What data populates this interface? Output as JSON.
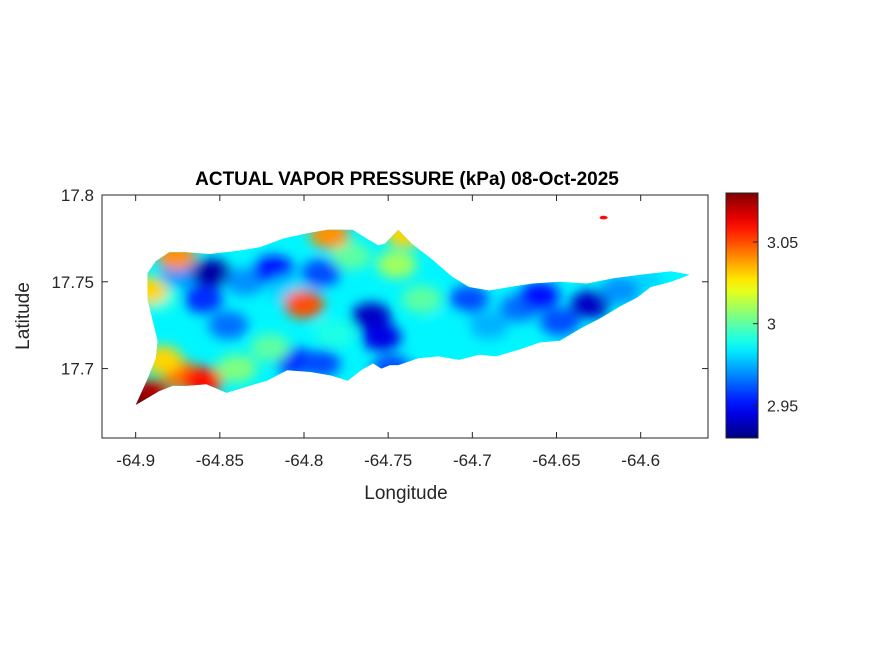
{
  "chart_data": {
    "type": "heatmap",
    "title": "ACTUAL VAPOR PRESSURE (kPa) 08-Oct-2025",
    "xlabel": "Longitude",
    "ylabel": "Latitude",
    "xlim": [
      -64.92,
      -64.56
    ],
    "ylim": [
      17.66,
      17.8
    ],
    "xticks": [
      -64.9,
      -64.85,
      -64.8,
      -64.75,
      -64.7,
      -64.65,
      -64.6
    ],
    "xtick_labels": [
      "-64.9",
      "-64.85",
      "-64.8",
      "-64.75",
      "-64.7",
      "-64.65",
      "-64.6"
    ],
    "yticks": [
      17.7,
      17.75,
      17.8
    ],
    "ytick_labels": [
      "17.7",
      "17.75",
      "17.8"
    ],
    "colorbar": {
      "colormap": "jet",
      "range": [
        2.93,
        3.08
      ],
      "ticks": [
        2.95,
        3,
        3.05
      ],
      "tick_labels": [
        "2.95",
        "3",
        "3.05"
      ]
    },
    "outline": [
      [
        -64.9,
        17.679
      ],
      [
        -64.886,
        17.687
      ],
      [
        -64.878,
        17.69
      ],
      [
        -64.87,
        17.69
      ],
      [
        -64.858,
        17.691
      ],
      [
        -64.846,
        17.686
      ],
      [
        -64.836,
        17.689
      ],
      [
        -64.822,
        17.693
      ],
      [
        -64.81,
        17.699
      ],
      [
        -64.796,
        17.698
      ],
      [
        -64.784,
        17.696
      ],
      [
        -64.774,
        17.693
      ],
      [
        -64.766,
        17.699
      ],
      [
        -64.759,
        17.703
      ],
      [
        -64.754,
        17.7
      ],
      [
        -64.749,
        17.702
      ],
      [
        -64.744,
        17.702
      ],
      [
        -64.732,
        17.706
      ],
      [
        -64.72,
        17.707
      ],
      [
        -64.708,
        17.705
      ],
      [
        -64.696,
        17.708
      ],
      [
        -64.686,
        17.707
      ],
      [
        -64.672,
        17.711
      ],
      [
        -64.66,
        17.715
      ],
      [
        -64.648,
        17.716
      ],
      [
        -64.636,
        17.723
      ],
      [
        -64.624,
        17.729
      ],
      [
        -64.612,
        17.736
      ],
      [
        -64.602,
        17.741
      ],
      [
        -64.594,
        17.747
      ],
      [
        -64.582,
        17.75
      ],
      [
        -64.571,
        17.754
      ],
      [
        -64.582,
        17.756
      ],
      [
        -64.6,
        17.754
      ],
      [
        -64.616,
        17.752
      ],
      [
        -64.632,
        17.749
      ],
      [
        -64.648,
        17.75
      ],
      [
        -64.664,
        17.749
      ],
      [
        -64.678,
        17.747
      ],
      [
        -64.69,
        17.745
      ],
      [
        -64.702,
        17.747
      ],
      [
        -64.712,
        17.753
      ],
      [
        -64.724,
        17.763
      ],
      [
        -64.736,
        17.772
      ],
      [
        -64.744,
        17.78
      ],
      [
        -64.748,
        17.776
      ],
      [
        -64.752,
        17.772
      ],
      [
        -64.756,
        17.771
      ],
      [
        -64.763,
        17.775
      ],
      [
        -64.771,
        17.78
      ],
      [
        -64.786,
        17.78
      ],
      [
        -64.798,
        17.778
      ],
      [
        -64.812,
        17.775
      ],
      [
        -64.826,
        17.77
      ],
      [
        -64.838,
        17.768
      ],
      [
        -64.856,
        17.766
      ],
      [
        -64.87,
        17.767
      ],
      [
        -64.88,
        17.767
      ],
      [
        -64.888,
        17.762
      ],
      [
        -64.893,
        17.755
      ],
      [
        -64.893,
        17.74
      ],
      [
        -64.89,
        17.728
      ],
      [
        -64.887,
        17.716
      ],
      [
        -64.888,
        17.706
      ],
      [
        -64.893,
        17.694
      ]
    ],
    "islet": {
      "x": -64.622,
      "y": 17.787,
      "value": 3.06
    },
    "value_field": [
      {
        "x": -64.885,
        "y": 17.74,
        "value": 2.99
      },
      {
        "x": -64.873,
        "y": 17.755,
        "value": 2.97
      },
      {
        "x": -64.855,
        "y": 17.755,
        "value": 2.935
      },
      {
        "x": -64.86,
        "y": 17.74,
        "value": 2.955
      },
      {
        "x": -64.845,
        "y": 17.725,
        "value": 2.965
      },
      {
        "x": -64.835,
        "y": 17.75,
        "value": 2.97
      },
      {
        "x": -64.818,
        "y": 17.757,
        "value": 2.95
      },
      {
        "x": -64.81,
        "y": 17.745,
        "value": 2.98
      },
      {
        "x": -64.8,
        "y": 17.737,
        "value": 3.05
      },
      {
        "x": -64.79,
        "y": 17.755,
        "value": 2.96
      },
      {
        "x": -64.772,
        "y": 17.765,
        "value": 3.0
      },
      {
        "x": -64.782,
        "y": 17.72,
        "value": 2.99
      },
      {
        "x": -64.805,
        "y": 17.704,
        "value": 2.955
      },
      {
        "x": -64.79,
        "y": 17.703,
        "value": 2.96
      },
      {
        "x": -64.76,
        "y": 17.73,
        "value": 2.94
      },
      {
        "x": -64.754,
        "y": 17.718,
        "value": 2.945
      },
      {
        "x": -64.748,
        "y": 17.7,
        "value": 2.96
      },
      {
        "x": -64.745,
        "y": 17.76,
        "value": 3.01
      },
      {
        "x": -64.73,
        "y": 17.74,
        "value": 3.0
      },
      {
        "x": -64.715,
        "y": 17.725,
        "value": 2.985
      },
      {
        "x": -64.702,
        "y": 17.74,
        "value": 2.96
      },
      {
        "x": -64.69,
        "y": 17.725,
        "value": 2.975
      },
      {
        "x": -64.672,
        "y": 17.735,
        "value": 2.965
      },
      {
        "x": -64.66,
        "y": 17.742,
        "value": 2.95
      },
      {
        "x": -64.648,
        "y": 17.727,
        "value": 2.96
      },
      {
        "x": -64.63,
        "y": 17.737,
        "value": 2.94
      },
      {
        "x": -64.612,
        "y": 17.745,
        "value": 2.97
      },
      {
        "x": -64.592,
        "y": 17.752,
        "value": 2.98
      },
      {
        "x": -64.578,
        "y": 17.754,
        "value": 2.985
      },
      {
        "x": -64.872,
        "y": 17.696,
        "value": 3.045
      },
      {
        "x": -64.86,
        "y": 17.693,
        "value": 3.06
      },
      {
        "x": -64.884,
        "y": 17.705,
        "value": 3.03
      },
      {
        "x": -64.892,
        "y": 17.686,
        "value": 3.07
      },
      {
        "x": -64.899,
        "y": 17.68,
        "value": 3.08
      },
      {
        "x": -64.876,
        "y": 17.765,
        "value": 3.04
      },
      {
        "x": -64.893,
        "y": 17.745,
        "value": 3.03
      },
      {
        "x": -64.84,
        "y": 17.7,
        "value": 3.005
      },
      {
        "x": -64.82,
        "y": 17.712,
        "value": 3.0
      },
      {
        "x": -64.74,
        "y": 17.778,
        "value": 3.03
      },
      {
        "x": -64.785,
        "y": 17.777,
        "value": 3.04
      }
    ]
  }
}
